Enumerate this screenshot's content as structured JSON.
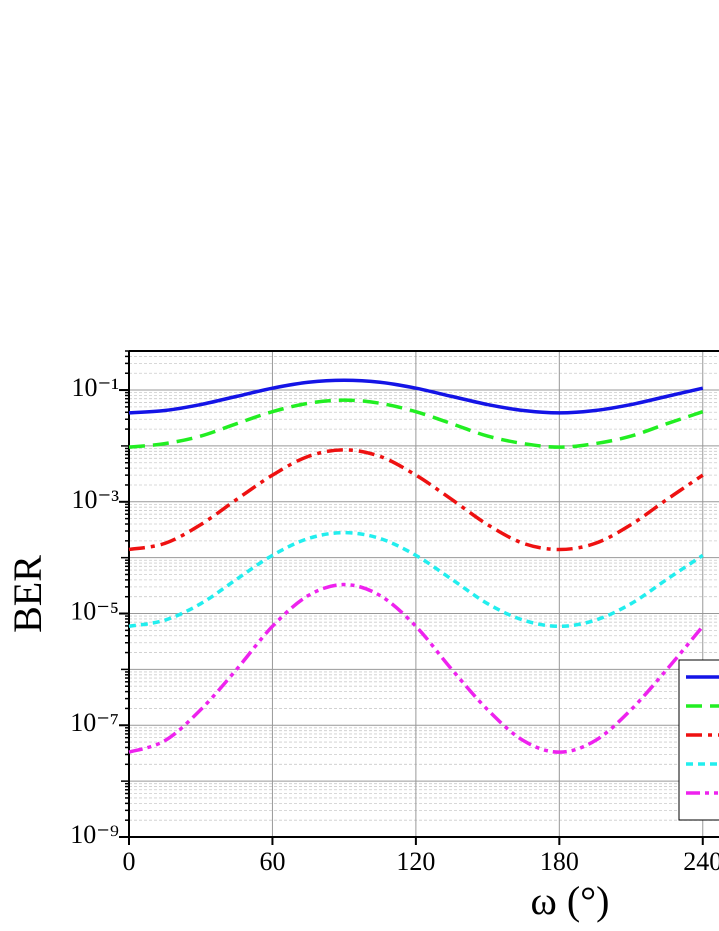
{
  "chart_data": {
    "type": "line",
    "x_label": "ω (°)",
    "y_label": "BER",
    "log_y": true,
    "grid": true,
    "x": [
      0,
      15,
      30,
      45,
      60,
      75,
      90,
      105,
      120,
      135,
      150,
      165,
      180,
      195,
      210,
      225,
      240
    ],
    "xlim": [
      0,
      247
    ],
    "xticks": [
      0,
      60,
      120,
      180,
      240
    ],
    "ylim": [
      1e-09,
      0.5
    ],
    "yticks": [
      {
        "value": 0.1,
        "label": "10⁻¹"
      },
      {
        "value": 0.001,
        "label": "10⁻³"
      },
      {
        "value": 1e-05,
        "label": "10⁻⁵"
      },
      {
        "value": 1e-07,
        "label": "10⁻⁷"
      },
      {
        "value": 1e-09,
        "label": "10⁻⁹"
      }
    ],
    "series": [
      {
        "color": "#1414e6",
        "linestyle": "solid",
        "values": [
          0.039,
          0.043,
          0.055,
          0.077,
          0.108,
          0.138,
          0.15,
          0.138,
          0.108,
          0.077,
          0.055,
          0.043,
          0.039,
          0.043,
          0.055,
          0.077,
          0.108
        ]
      },
      {
        "color": "#22ee22",
        "linestyle": "dashed",
        "values": [
          0.0095,
          0.011,
          0.015,
          0.025,
          0.041,
          0.058,
          0.066,
          0.058,
          0.041,
          0.025,
          0.015,
          0.011,
          0.0095,
          0.011,
          0.015,
          0.025,
          0.041
        ]
      },
      {
        "color": "#ee1111",
        "linestyle": "dashdot",
        "values": [
          0.00014,
          0.00018,
          0.00039,
          0.0011,
          0.003,
          0.0065,
          0.0085,
          0.0065,
          0.003,
          0.0011,
          0.00039,
          0.00018,
          0.00014,
          0.00018,
          0.00039,
          0.0011,
          0.003
        ]
      },
      {
        "color": "#22eeee",
        "linestyle": "dotted",
        "values": [
          5.9e-06,
          7.6e-06,
          1.5e-05,
          4.1e-05,
          0.00011,
          0.00022,
          0.00028,
          0.00022,
          0.00011,
          4.1e-05,
          1.5e-05,
          7.6e-06,
          5.9e-06,
          7.6e-06,
          1.5e-05,
          4.1e-05,
          0.00011
        ]
      },
      {
        "color": "#ee22ee",
        "linestyle": "dashdotdot",
        "values": [
          3.3e-08,
          5.3e-08,
          1.9e-07,
          1e-06,
          5.9e-06,
          2.1e-05,
          3.3e-05,
          2.1e-05,
          5.9e-06,
          1e-06,
          1.9e-07,
          5.3e-08,
          3.3e-08,
          5.3e-08,
          1.9e-07,
          1e-06,
          5.9e-06
        ]
      }
    ]
  }
}
